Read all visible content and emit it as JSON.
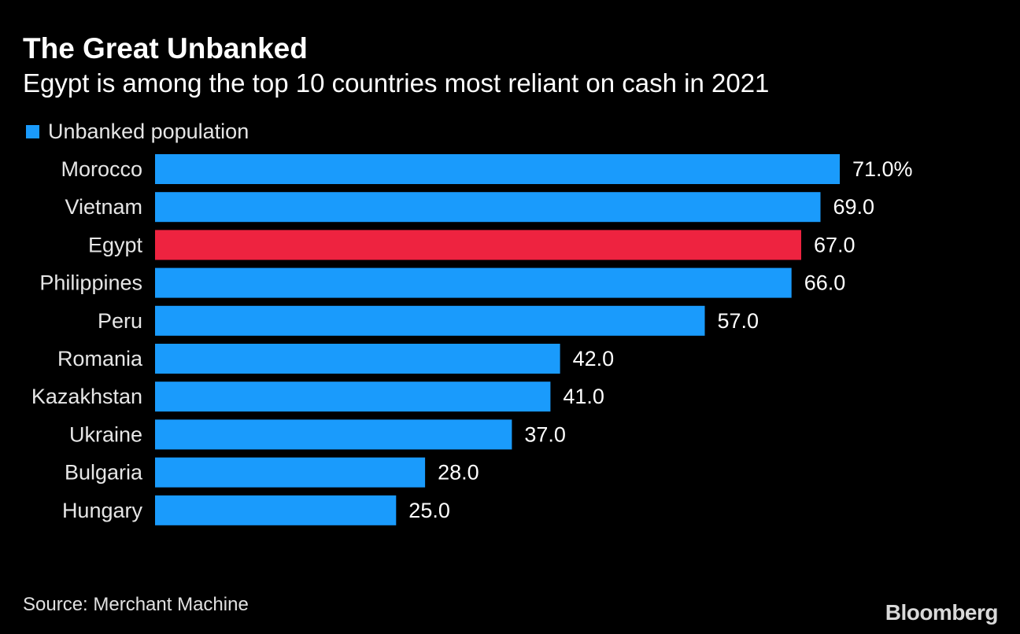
{
  "title": "The Great Unbanked",
  "subtitle": "Egypt is among the top 10 countries most reliant on cash in 2021",
  "legend": {
    "label": "Unbanked population",
    "color": "#1a9bfc"
  },
  "source": "Source: Merchant Machine",
  "brand": "Bloomberg",
  "colors": {
    "background": "#000000",
    "default_bar": "#1a9bfc",
    "highlight_bar": "#ee2340",
    "text": "#ffffff"
  },
  "chart_data": {
    "type": "bar",
    "orientation": "horizontal",
    "title": "The Great Unbanked",
    "subtitle": "Egypt is among the top 10 countries most reliant on cash in 2021",
    "xlabel": "",
    "ylabel": "",
    "xlim": [
      0,
      71
    ],
    "grid": false,
    "legend_position": "top-left",
    "series": [
      {
        "name": "Unbanked population",
        "values": [
          71.0,
          69.0,
          67.0,
          66.0,
          57.0,
          42.0,
          41.0,
          37.0,
          28.0,
          25.0
        ]
      }
    ],
    "categories": [
      "Morocco",
      "Vietnam",
      "Egypt",
      "Philippines",
      "Peru",
      "Romania",
      "Kazakhstan",
      "Ukraine",
      "Bulgaria",
      "Hungary"
    ],
    "values": [
      71.0,
      69.0,
      67.0,
      66.0,
      57.0,
      42.0,
      41.0,
      37.0,
      28.0,
      25.0
    ],
    "value_labels": [
      "71.0%",
      "69.0",
      "67.0",
      "66.0",
      "57.0",
      "42.0",
      "41.0",
      "37.0",
      "28.0",
      "25.0"
    ],
    "highlight": "Egypt"
  }
}
